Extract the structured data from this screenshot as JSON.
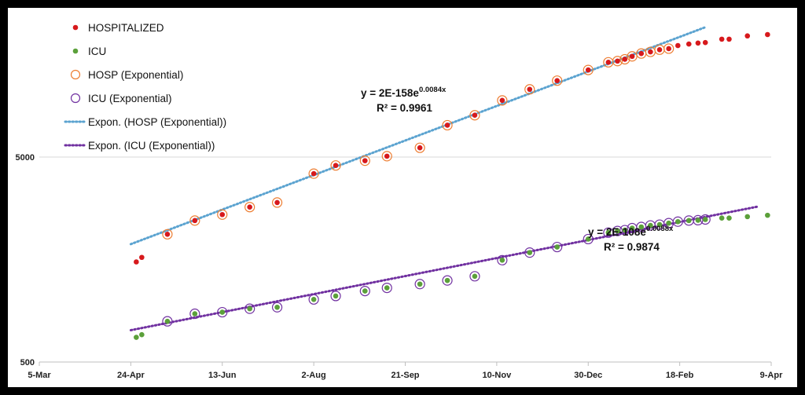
{
  "chart_data": {
    "type": "scatter",
    "title": "",
    "xlabel": "",
    "ylabel": "",
    "y_scale": "log",
    "ylim": [
      500,
      25000
    ],
    "xlim": [
      "2020-03-05",
      "2021-04-09"
    ],
    "y_ticks": [
      "500",
      "5000"
    ],
    "x_ticks": [
      "5-Mar",
      "24-Apr",
      "13-Jun",
      "2-Aug",
      "21-Sep",
      "10-Nov",
      "30-Dec",
      "18-Feb",
      "9-Apr"
    ],
    "x_tick_dates": [
      "2020-03-05",
      "2020-04-24",
      "2020-06-13",
      "2020-08-02",
      "2020-09-21",
      "2020-11-10",
      "2020-12-30",
      "2021-02-18",
      "2021-04-09"
    ],
    "grid": "horizontal",
    "legend_position": "top-left",
    "legend": [
      {
        "label": "HOSPITALIZED",
        "kind": "dot",
        "color": "#d7191c"
      },
      {
        "label": "ICU",
        "kind": "dot",
        "color": "#5ba03a"
      },
      {
        "label": "HOSP (Exponential)",
        "kind": "ring",
        "color": "#ed7d31"
      },
      {
        "label": "ICU (Exponential)",
        "kind": "ring",
        "color": "#7030a0"
      },
      {
        "label": "Expon. (HOSP (Exponential))",
        "kind": "dotted-line",
        "color": "#5ba3d0"
      },
      {
        "label": "Expon. (ICU (Exponential))",
        "kind": "dotted-line",
        "color": "#7030a0"
      }
    ],
    "series": [
      {
        "name": "HOSPITALIZED",
        "color": "#d7191c",
        "points": [
          [
            "2020-04-27",
            1540
          ],
          [
            "2020-04-30",
            1620
          ],
          [
            "2020-05-14",
            2100
          ],
          [
            "2020-05-29",
            2450
          ],
          [
            "2020-06-13",
            2620
          ],
          [
            "2020-06-28",
            2850
          ],
          [
            "2020-07-13",
            3000
          ],
          [
            "2020-08-02",
            4150
          ],
          [
            "2020-08-14",
            4550
          ],
          [
            "2020-08-30",
            4800
          ],
          [
            "2020-09-11",
            5050
          ],
          [
            "2020-09-29",
            5550
          ],
          [
            "2020-10-14",
            7150
          ],
          [
            "2020-10-29",
            8000
          ],
          [
            "2020-11-13",
            9450
          ],
          [
            "2020-11-28",
            10700
          ],
          [
            "2020-12-13",
            11800
          ],
          [
            "2020-12-30",
            13300
          ],
          [
            "2021-01-10",
            14500
          ],
          [
            "2021-01-15",
            14700
          ],
          [
            "2021-01-19",
            15000
          ],
          [
            "2021-01-23",
            15500
          ],
          [
            "2021-01-28",
            16000
          ],
          [
            "2021-02-02",
            16300
          ],
          [
            "2021-02-07",
            16700
          ],
          [
            "2021-02-12",
            16900
          ],
          [
            "2021-02-17",
            17500
          ],
          [
            "2021-02-23",
            17800
          ],
          [
            "2021-02-28",
            18000
          ],
          [
            "2021-03-04",
            18100
          ],
          [
            "2021-03-13",
            18800
          ],
          [
            "2021-03-17",
            18800
          ],
          [
            "2021-03-27",
            19500
          ],
          [
            "2021-04-07",
            19800
          ]
        ]
      },
      {
        "name": "ICU",
        "color": "#5ba03a",
        "points": [
          [
            "2020-04-27",
            660
          ],
          [
            "2020-04-30",
            680
          ],
          [
            "2020-05-14",
            790
          ],
          [
            "2020-05-29",
            860
          ],
          [
            "2020-06-13",
            875
          ],
          [
            "2020-06-28",
            910
          ],
          [
            "2020-07-13",
            925
          ],
          [
            "2020-08-02",
            1010
          ],
          [
            "2020-08-14",
            1050
          ],
          [
            "2020-08-30",
            1110
          ],
          [
            "2020-09-11",
            1150
          ],
          [
            "2020-09-29",
            1200
          ],
          [
            "2020-10-14",
            1250
          ],
          [
            "2020-10-29",
            1310
          ],
          [
            "2020-11-13",
            1570
          ],
          [
            "2020-11-28",
            1710
          ],
          [
            "2020-12-13",
            1820
          ],
          [
            "2020-12-30",
            1990
          ],
          [
            "2021-01-10",
            2140
          ],
          [
            "2021-01-15",
            2180
          ],
          [
            "2021-01-19",
            2200
          ],
          [
            "2021-01-23",
            2250
          ],
          [
            "2021-01-28",
            2280
          ],
          [
            "2021-02-02",
            2320
          ],
          [
            "2021-02-07",
            2340
          ],
          [
            "2021-02-12",
            2380
          ],
          [
            "2021-02-17",
            2420
          ],
          [
            "2021-02-23",
            2450
          ],
          [
            "2021-02-28",
            2460
          ],
          [
            "2021-03-04",
            2480
          ],
          [
            "2021-03-13",
            2520
          ],
          [
            "2021-03-17",
            2520
          ],
          [
            "2021-03-27",
            2560
          ],
          [
            "2021-04-07",
            2600
          ]
        ]
      },
      {
        "name": "HOSP (Exponential)",
        "color": "#ed7d31",
        "points": [
          [
            "2020-05-14",
            2100
          ],
          [
            "2020-05-29",
            2450
          ],
          [
            "2020-06-13",
            2620
          ],
          [
            "2020-06-28",
            2850
          ],
          [
            "2020-07-13",
            3000
          ],
          [
            "2020-08-02",
            4150
          ],
          [
            "2020-08-14",
            4550
          ],
          [
            "2020-08-30",
            4800
          ],
          [
            "2020-09-11",
            5050
          ],
          [
            "2020-09-29",
            5550
          ],
          [
            "2020-10-14",
            7150
          ],
          [
            "2020-10-29",
            8000
          ],
          [
            "2020-11-13",
            9450
          ],
          [
            "2020-11-28",
            10700
          ],
          [
            "2020-12-13",
            11800
          ],
          [
            "2020-12-30",
            13300
          ],
          [
            "2021-01-10",
            14500
          ],
          [
            "2021-01-15",
            14700
          ],
          [
            "2021-01-19",
            15000
          ],
          [
            "2021-01-23",
            15500
          ],
          [
            "2021-01-28",
            16000
          ],
          [
            "2021-02-02",
            16300
          ],
          [
            "2021-02-07",
            16700
          ],
          [
            "2021-02-12",
            16900
          ]
        ]
      },
      {
        "name": "ICU (Exponential)",
        "color": "#7030a0",
        "points": [
          [
            "2020-05-14",
            790
          ],
          [
            "2020-05-29",
            860
          ],
          [
            "2020-06-13",
            875
          ],
          [
            "2020-06-28",
            910
          ],
          [
            "2020-07-13",
            925
          ],
          [
            "2020-08-02",
            1010
          ],
          [
            "2020-08-14",
            1050
          ],
          [
            "2020-08-30",
            1110
          ],
          [
            "2020-09-11",
            1150
          ],
          [
            "2020-09-29",
            1200
          ],
          [
            "2020-10-14",
            1250
          ],
          [
            "2020-10-29",
            1310
          ],
          [
            "2020-11-13",
            1570
          ],
          [
            "2020-11-28",
            1710
          ],
          [
            "2020-12-13",
            1820
          ],
          [
            "2020-12-30",
            1990
          ],
          [
            "2021-01-10",
            2140
          ],
          [
            "2021-01-15",
            2180
          ],
          [
            "2021-01-19",
            2200
          ],
          [
            "2021-01-23",
            2250
          ],
          [
            "2021-01-28",
            2280
          ],
          [
            "2021-02-02",
            2320
          ],
          [
            "2021-02-07",
            2340
          ],
          [
            "2021-02-12",
            2380
          ],
          [
            "2021-02-17",
            2420
          ],
          [
            "2021-02-23",
            2450
          ],
          [
            "2021-02-28",
            2460
          ],
          [
            "2021-03-04",
            2480
          ]
        ]
      }
    ],
    "trendlines": [
      {
        "name": "Expon. (HOSP (Exponential))",
        "color": "#5ba3d0",
        "from": [
          "2020-04-24",
          1880
        ],
        "to": [
          "2021-03-04",
          21500
        ],
        "equation_prefix": "y = 2E-158e",
        "equation_exponent": "0.0084x",
        "r2_label": "R² = 0.9961"
      },
      {
        "name": "Expon. (ICU (Exponential))",
        "color": "#7030a0",
        "from": [
          "2020-04-24",
          715
        ],
        "to": [
          "2021-04-02",
          2870
        ],
        "equation_prefix": "y = 2E-108e",
        "equation_exponent": "0.0058x",
        "r2_label": "R² = 0.9874"
      }
    ]
  }
}
